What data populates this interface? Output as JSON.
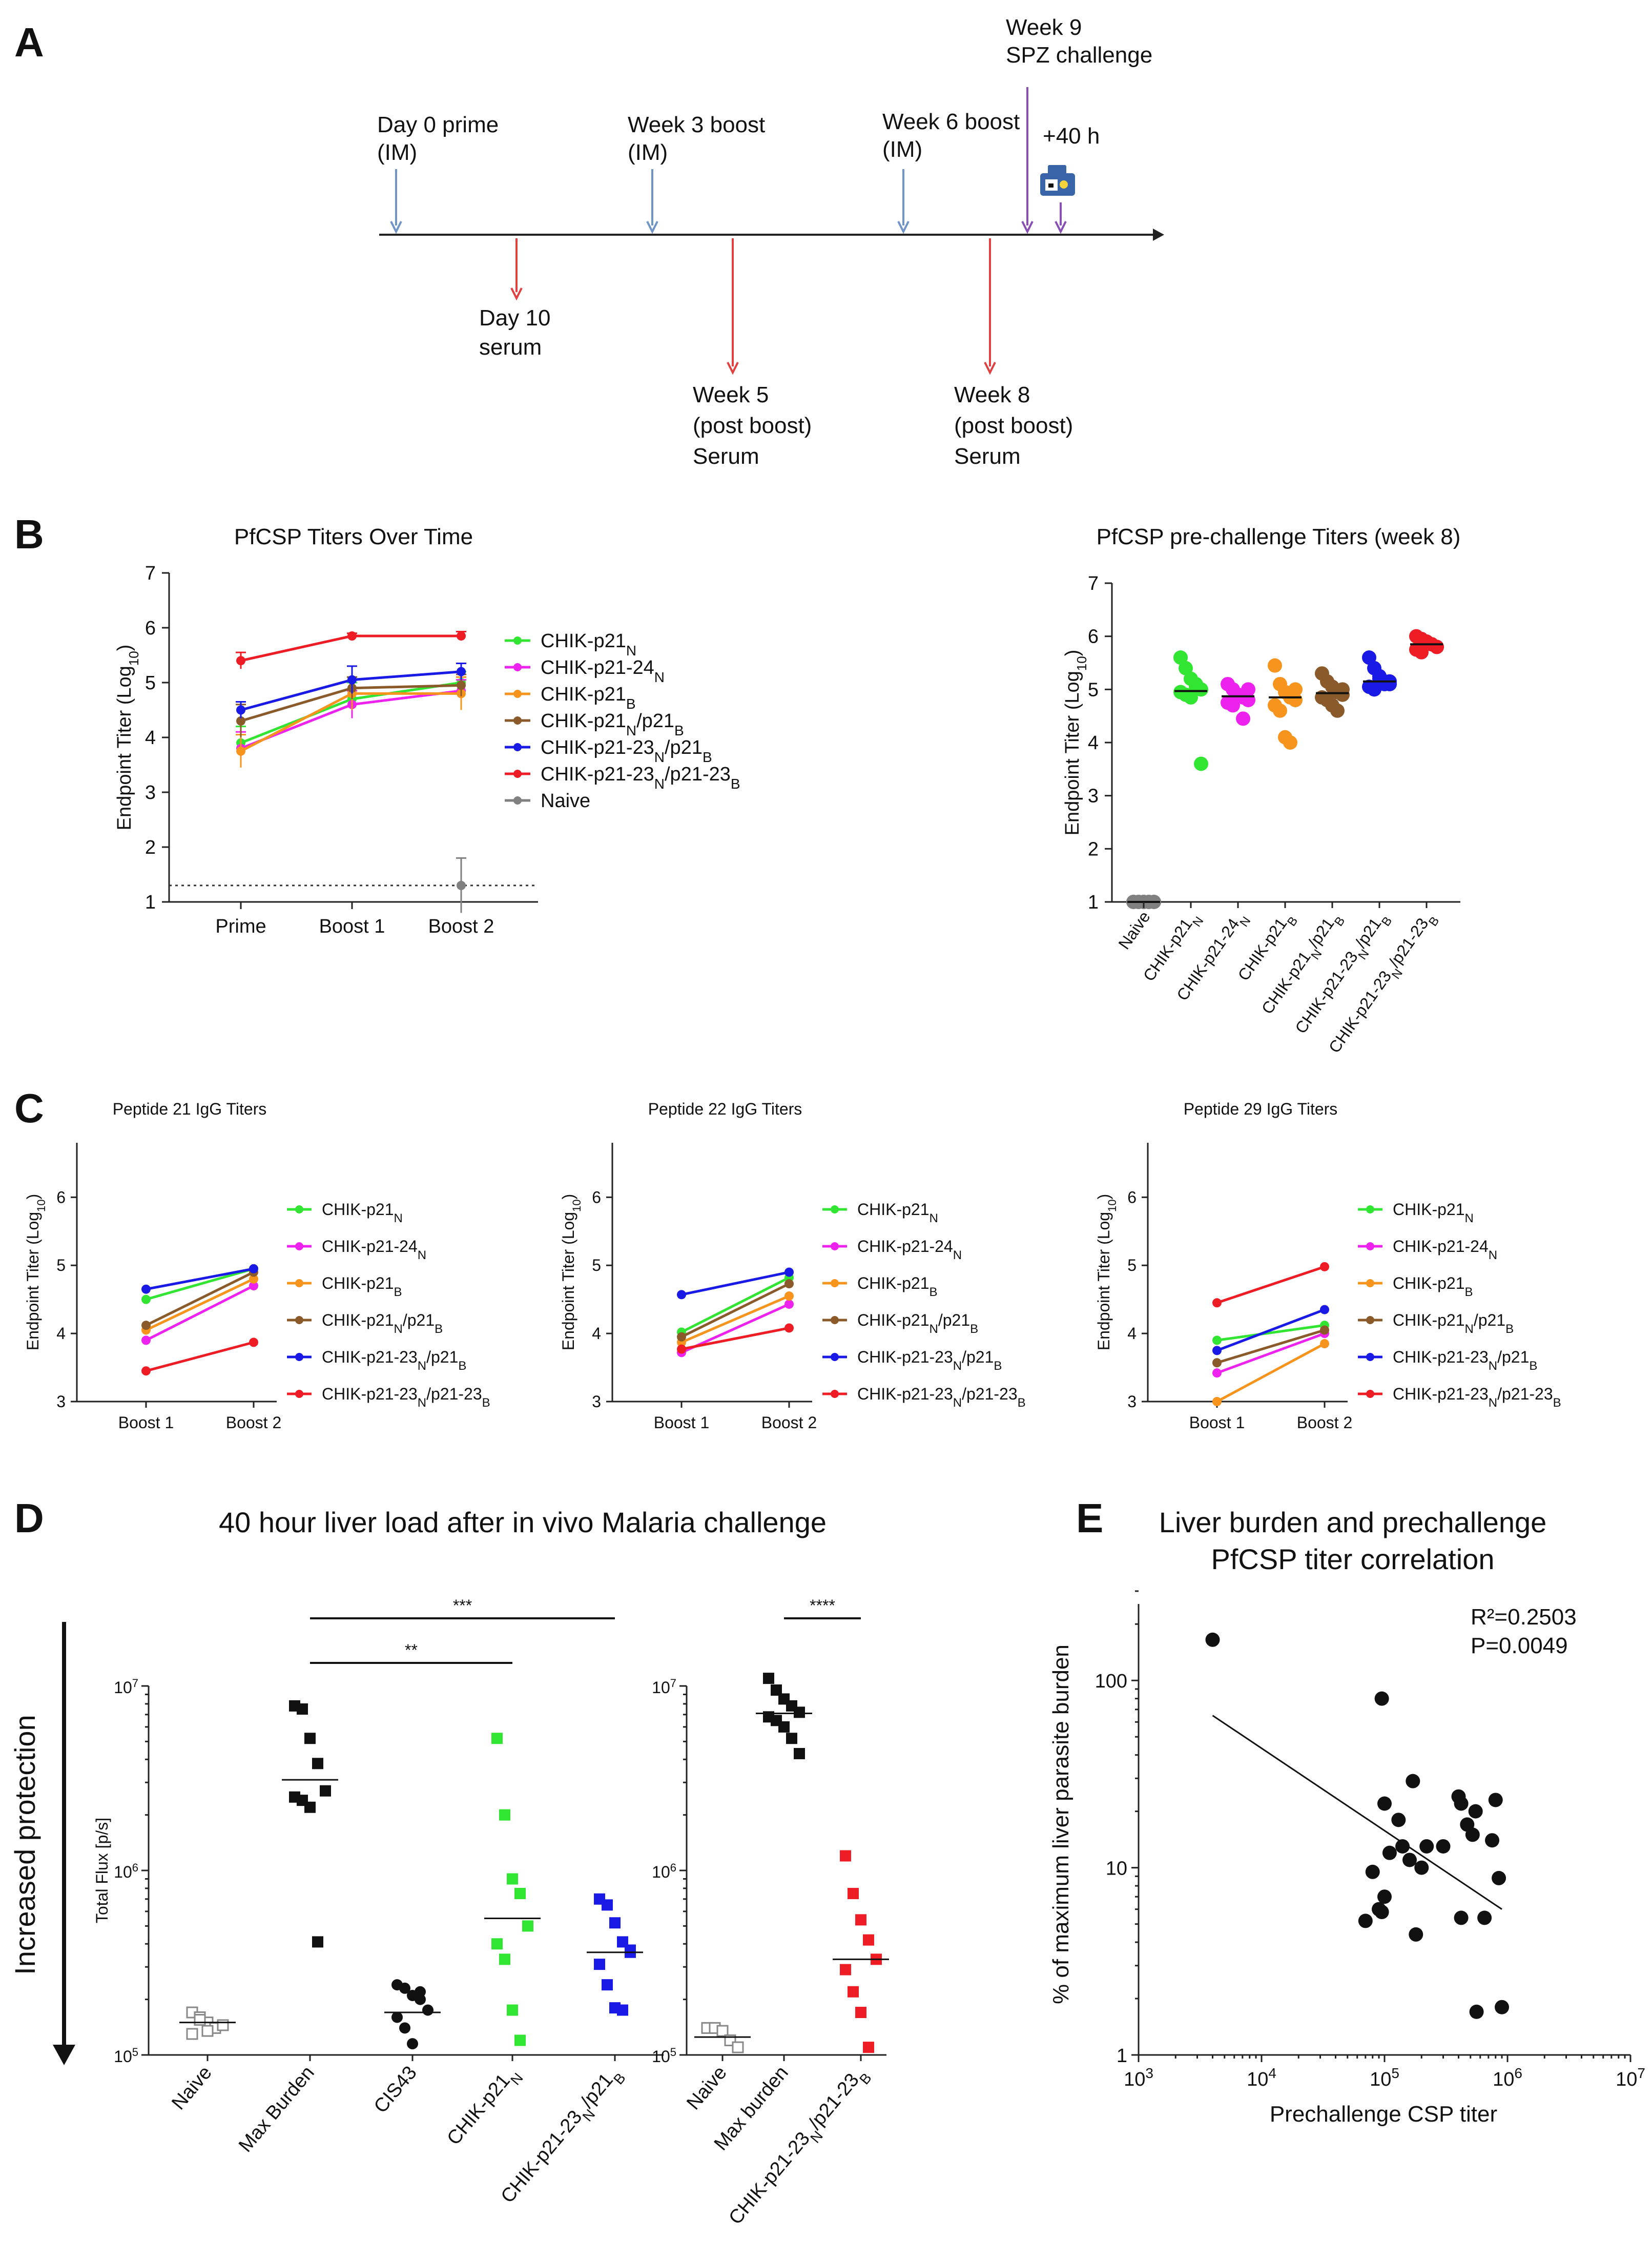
{
  "panel_labels": {
    "a": "A",
    "b": "B",
    "c": "C",
    "d": "D",
    "e": "E"
  },
  "timeline": {
    "events": [
      {
        "id": "prime",
        "lines": [
          "Day 0 prime",
          "(IM)"
        ],
        "arrow": "blue"
      },
      {
        "id": "boost1",
        "lines": [
          "Week 3 boost",
          "(IM)"
        ],
        "arrow": "blue"
      },
      {
        "id": "boost2",
        "lines": [
          "Week 6 boost",
          "(IM)"
        ],
        "arrow": "blue"
      },
      {
        "id": "challenge",
        "lines": [
          "Week 9",
          "SPZ challenge"
        ],
        "arrow": "purple"
      },
      {
        "id": "imaging",
        "lines": [
          "+40 h"
        ],
        "arrow": "purple"
      },
      {
        "id": "serum10",
        "lines": [
          "Day 10",
          "serum"
        ],
        "arrow": "red"
      },
      {
        "id": "serum5",
        "lines": [
          "Week 5",
          "(post boost)",
          "Serum"
        ],
        "arrow": "red"
      },
      {
        "id": "serum8",
        "lines": [
          "Week 8",
          "(post boost)",
          "Serum"
        ],
        "arrow": "red"
      }
    ],
    "colors": {
      "blue": "#6f95c8",
      "red": "#e04040",
      "purple": "#8a4fb5"
    }
  },
  "groups": [
    {
      "id": "p21n",
      "base": "CHIK-p21",
      "sub": "N",
      "color": "#33e533"
    },
    {
      "id": "p2124n",
      "base": "CHIK-p21-24",
      "sub": "N",
      "color": "#ee22ee"
    },
    {
      "id": "p21b",
      "base": "CHIK-p21",
      "sub": "B",
      "color": "#f7941d"
    },
    {
      "id": "p21nb",
      "base": "CHIK-p21",
      "sub": "N",
      "mid": "/p21",
      "sub2": "B",
      "color": "#8b5a2b"
    },
    {
      "id": "p2123nb",
      "base": "CHIK-p21-23",
      "sub": "N",
      "mid": "/p21",
      "sub2": "B",
      "color": "#1a1ae6"
    },
    {
      "id": "p2123nb23",
      "base": "CHIK-p21-23",
      "sub": "N",
      "mid": "/p21-23",
      "sub2": "B",
      "color": "#ee1c24"
    },
    {
      "id": "naive",
      "base": "Naive",
      "color": "#808080"
    }
  ],
  "chart_data": [
    {
      "id": "b_left",
      "type": "line",
      "title": "PfCSP Titers Over Time",
      "ylabel": "Endpoint Titer (Log10)",
      "ylim": [
        1,
        7
      ],
      "categories": [
        "Prime",
        "Boost 1",
        "Boost 2"
      ],
      "yticks": [
        "1",
        "2",
        "3",
        "4",
        "5",
        "6",
        "7"
      ],
      "reference_line": 1.3,
      "series": [
        {
          "name": "CHIK-p21N",
          "values": [
            3.9,
            4.7,
            5.0
          ],
          "err": [
            0.3,
            0.3,
            0.2
          ]
        },
        {
          "name": "CHIK-p21-24N",
          "values": [
            3.8,
            4.6,
            4.85
          ],
          "err": [
            0.3,
            0.25,
            0.2
          ]
        },
        {
          "name": "CHIK-p21B",
          "values": [
            3.75,
            4.8,
            4.8
          ],
          "err": [
            0.3,
            0.3,
            0.3
          ]
        },
        {
          "name": "CHIK-p21N/p21B",
          "values": [
            4.3,
            4.9,
            4.95
          ],
          "err": [
            0.3,
            0.2,
            0.2
          ]
        },
        {
          "name": "CHIK-p21-23N/p21B",
          "values": [
            4.5,
            5.05,
            5.2
          ],
          "err": [
            0.15,
            0.25,
            0.15
          ]
        },
        {
          "name": "CHIK-p21-23N/p21-23B",
          "values": [
            5.4,
            5.85,
            5.85
          ],
          "err": [
            0.15,
            0.05,
            0.08
          ]
        },
        {
          "name": "Naive",
          "values": [
            null,
            null,
            1.3
          ],
          "err": [
            0,
            0,
            0.5
          ]
        }
      ]
    },
    {
      "id": "b_right",
      "type": "scatter",
      "title": "PfCSP pre-challenge Titers (week 8)",
      "ylabel": "Endpoint Titer (Log10)",
      "ylim": [
        1,
        7
      ],
      "yticks": [
        "1",
        "2",
        "3",
        "4",
        "5",
        "6",
        "7"
      ],
      "categories": [
        "Naive",
        "CHIK-p21N",
        "CHIK-p21-24N",
        "CHIK-p21B",
        "CHIK-p21N/p21B",
        "CHIK-p21-23N/p21B",
        "CHIK-p21-23N/p21-23B"
      ],
      "medians": [
        1.0,
        4.97,
        4.87,
        4.85,
        4.93,
        5.15,
        5.85
      ],
      "points": [
        [
          1,
          1,
          1,
          1,
          1,
          1,
          1,
          1,
          1,
          1
        ],
        [
          5.6,
          5.4,
          5.2,
          5.1,
          5.0,
          4.95,
          4.9,
          4.85,
          5.05,
          3.6
        ],
        [
          5.1,
          5.0,
          4.9,
          4.85,
          4.8,
          4.75,
          4.7,
          4.9,
          4.45,
          5.0
        ],
        [
          5.45,
          5.1,
          4.95,
          4.85,
          4.8,
          4.7,
          4.6,
          4.1,
          4.0,
          5.0
        ],
        [
          5.3,
          5.15,
          5.05,
          4.95,
          4.9,
          4.85,
          4.8,
          4.7,
          4.6,
          5.0
        ],
        [
          5.6,
          5.4,
          5.25,
          5.15,
          5.1,
          5.05,
          5.0,
          5.2,
          5.1,
          5.15
        ],
        [
          6.0,
          5.95,
          5.9,
          5.85,
          5.8,
          5.75,
          5.7,
          5.9,
          5.85,
          5.8
        ]
      ]
    },
    {
      "id": "c1",
      "type": "line",
      "title": "Peptide 21 IgG Titers",
      "ylabel": "Endpoint Titer (Log10)",
      "ylim": [
        3,
        6.8
      ],
      "yticks": [
        "3",
        "4",
        "5",
        "6"
      ],
      "categories": [
        "Boost 1",
        "Boost 2"
      ],
      "series": [
        {
          "name": "CHIK-p21N",
          "values": [
            4.5,
            4.95
          ]
        },
        {
          "name": "CHIK-p21-24N",
          "values": [
            3.9,
            4.7
          ]
        },
        {
          "name": "CHIK-p21B",
          "values": [
            4.05,
            4.8
          ]
        },
        {
          "name": "CHIK-p21N/p21B",
          "values": [
            4.12,
            4.9
          ]
        },
        {
          "name": "CHIK-p21-23N/p21B",
          "values": [
            4.65,
            4.95
          ]
        },
        {
          "name": "CHIK-p21-23N/p21-23B",
          "values": [
            3.45,
            3.87
          ]
        }
      ]
    },
    {
      "id": "c2",
      "type": "line",
      "title": "Peptide 22 IgG Titers",
      "ylabel": "Endpoint Titer (Log10)",
      "ylim": [
        3,
        6.8
      ],
      "yticks": [
        "3",
        "4",
        "5",
        "6"
      ],
      "categories": [
        "Boost 1",
        "Boost 2"
      ],
      "series": [
        {
          "name": "CHIK-p21N",
          "values": [
            4.02,
            4.82
          ]
        },
        {
          "name": "CHIK-p21-24N",
          "values": [
            3.72,
            4.43
          ]
        },
        {
          "name": "CHIK-p21B",
          "values": [
            3.87,
            4.55
          ]
        },
        {
          "name": "CHIK-p21N/p21B",
          "values": [
            3.95,
            4.73
          ]
        },
        {
          "name": "CHIK-p21-23N/p21B",
          "values": [
            4.57,
            4.9
          ]
        },
        {
          "name": "CHIK-p21-23N/p21-23B",
          "values": [
            3.77,
            4.08
          ]
        }
      ]
    },
    {
      "id": "c3",
      "type": "line",
      "title": "Peptide 29 IgG Titers",
      "ylabel": "Endpoint Titer (Log10)",
      "ylim": [
        3,
        6.8
      ],
      "yticks": [
        "3",
        "4",
        "5",
        "6"
      ],
      "categories": [
        "Boost 1",
        "Boost 2"
      ],
      "series": [
        {
          "name": "CHIK-p21N",
          "values": [
            3.9,
            4.12
          ]
        },
        {
          "name": "CHIK-p21-24N",
          "values": [
            3.42,
            4.0
          ]
        },
        {
          "name": "CHIK-p21B",
          "values": [
            3.0,
            3.85
          ]
        },
        {
          "name": "CHIK-p21N/p21B",
          "values": [
            3.57,
            4.05
          ]
        },
        {
          "name": "CHIK-p21-23N/p21B",
          "values": [
            3.75,
            4.35
          ]
        },
        {
          "name": "CHIK-p21-23N/p21-23B",
          "values": [
            4.45,
            4.98
          ]
        }
      ]
    },
    {
      "id": "d1",
      "type": "scatter",
      "title": "40 hour liver load after in vivo Malaria challenge",
      "ylabel": "Total Flux [p/s]",
      "ylog": [
        5,
        7
      ],
      "yticks": [
        {
          "base": "10",
          "exp": "7"
        },
        {
          "base": "10",
          "exp": "6"
        },
        {
          "base": "10",
          "exp": "5"
        }
      ],
      "categories": [
        "Naive",
        "Max Burden",
        "CIS43",
        "CHIK-p21N",
        "CHIK-p21-23N/p21B"
      ],
      "medians": [
        150000,
        3100000,
        170000,
        550000,
        360000
      ],
      "points": [
        [
          170000,
          160000,
          150000,
          140000,
          145000,
          130000,
          155000,
          135000
        ],
        [
          7800000,
          7500000,
          5200000,
          3800000,
          2700000,
          2500000,
          2400000,
          2200000,
          410000
        ],
        [
          240000,
          230000,
          210000,
          200000,
          175000,
          160000,
          140000,
          115000,
          220000
        ],
        [
          5200000,
          2000000,
          900000,
          750000,
          500000,
          400000,
          330000,
          175000,
          120000
        ],
        [
          700000,
          650000,
          520000,
          410000,
          370000,
          310000,
          240000,
          180000,
          175000,
          360000
        ]
      ],
      "significance": [
        {
          "from": 1,
          "to": 4,
          "label": "***"
        },
        {
          "from": 1,
          "to": 3,
          "label": "**"
        }
      ]
    },
    {
      "id": "d2",
      "type": "scatter",
      "ylog": [
        5,
        7
      ],
      "yticks": [
        {
          "base": "10",
          "exp": "7"
        },
        {
          "base": "10",
          "exp": "6"
        },
        {
          "base": "10",
          "exp": "5"
        }
      ],
      "categories": [
        "Naive",
        "Max burden",
        "CHIK-p21-23N/p21-23B"
      ],
      "medians": [
        125000,
        7100000,
        330000
      ],
      "points": [
        [
          140000,
          140000,
          135000,
          120000,
          110000
        ],
        [
          11000000,
          9500000,
          8500000,
          7800000,
          7200000,
          6800000,
          6500000,
          6000000,
          5200000,
          4300000
        ],
        [
          1200000,
          750000,
          540000,
          420000,
          330000,
          290000,
          220000,
          170000,
          110000
        ]
      ],
      "significance": [
        {
          "from": 1,
          "to": 2,
          "label": "****"
        }
      ]
    },
    {
      "id": "e",
      "type": "scatter",
      "title": "Liver burden and prechallenge PfCSP titer correlation",
      "title_lines": [
        "Liver burden and prechallenge",
        "PfCSP titer correlation"
      ],
      "xlabel": "Prechallenge CSP titer",
      "ylabel": "% of maximum liver parasite burden",
      "xlog": [
        3,
        7
      ],
      "ylog": [
        0,
        2.5
      ],
      "xticks": [
        {
          "base": "10",
          "exp": "3"
        },
        {
          "base": "10",
          "exp": "4"
        },
        {
          "base": "10",
          "exp": "5"
        },
        {
          "base": "10",
          "exp": "6"
        },
        {
          "base": "10",
          "exp": "7"
        }
      ],
      "yticks": [
        "100",
        "10",
        "1"
      ],
      "annotation": [
        "R²=0.2503",
        "P=0.0049"
      ],
      "fit": {
        "x": [
          4000,
          900000
        ],
        "y": [
          65,
          6
        ]
      },
      "points": [
        [
          4000,
          165
        ],
        [
          95000,
          80
        ],
        [
          100000,
          22
        ],
        [
          130000,
          18
        ],
        [
          170000,
          29
        ],
        [
          110000,
          12
        ],
        [
          140000,
          13
        ],
        [
          220000,
          13
        ],
        [
          90000,
          6
        ],
        [
          160000,
          11
        ],
        [
          200000,
          10
        ],
        [
          70000,
          5.2
        ],
        [
          95000,
          5.8
        ],
        [
          180000,
          4.4
        ],
        [
          400000,
          24
        ],
        [
          420000,
          22
        ],
        [
          550000,
          20
        ],
        [
          470000,
          17
        ],
        [
          520000,
          15
        ],
        [
          800000,
          23
        ],
        [
          420000,
          5.4
        ],
        [
          650000,
          5.4
        ],
        [
          750000,
          14
        ],
        [
          850000,
          8.8
        ],
        [
          560000,
          1.7
        ],
        [
          900000,
          1.8
        ],
        [
          80000,
          9.5
        ],
        [
          100000,
          7
        ],
        [
          300000,
          13
        ]
      ]
    }
  ],
  "side_label": "Increased protection"
}
